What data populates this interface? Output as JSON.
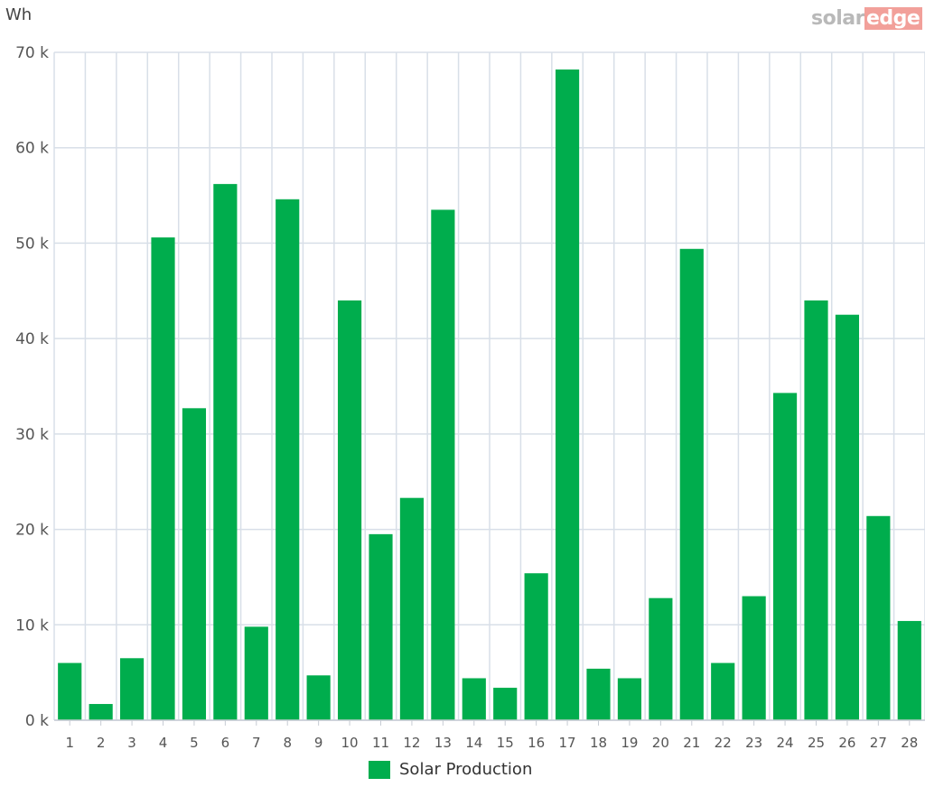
{
  "brand": {
    "solar": "solar",
    "edge": "edge"
  },
  "chart_data": {
    "type": "bar",
    "unit_label": "Wh",
    "categories": [
      "1",
      "2",
      "3",
      "4",
      "5",
      "6",
      "7",
      "8",
      "9",
      "10",
      "11",
      "12",
      "13",
      "14",
      "15",
      "16",
      "17",
      "18",
      "19",
      "20",
      "21",
      "22",
      "23",
      "24",
      "25",
      "26",
      "27",
      "28"
    ],
    "series": [
      {
        "name": "Solar Production",
        "color": "#00ad4d",
        "values": [
          6000,
          1700,
          6500,
          50600,
          32700,
          56200,
          9800,
          54600,
          4700,
          44000,
          19500,
          23300,
          53500,
          4400,
          3400,
          15400,
          68200,
          5400,
          4400,
          12800,
          49400,
          6000,
          13000,
          34300,
          44000,
          42500,
          21400,
          10400
        ]
      }
    ],
    "ylim": [
      0,
      70000
    ],
    "yticks": [
      0,
      10000,
      20000,
      30000,
      40000,
      50000,
      60000,
      70000
    ],
    "ytick_labels": [
      "0 k",
      "10 k",
      "20 k",
      "30 k",
      "40 k",
      "50 k",
      "60 k",
      "70 k"
    ],
    "grid": true,
    "legend": "bottom-center"
  }
}
